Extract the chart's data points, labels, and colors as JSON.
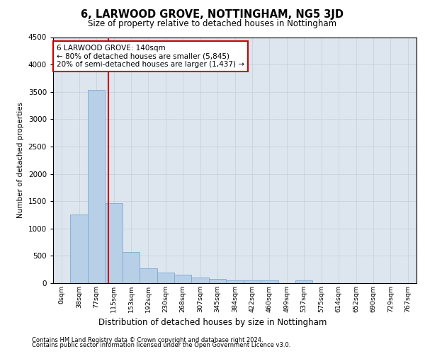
{
  "title": "6, LARWOOD GROVE, NOTTINGHAM, NG5 3JD",
  "subtitle": "Size of property relative to detached houses in Nottingham",
  "xlabel": "Distribution of detached houses by size in Nottingham",
  "ylabel": "Number of detached properties",
  "footer_line1": "Contains HM Land Registry data © Crown copyright and database right 2024.",
  "footer_line2": "Contains public sector information licensed under the Open Government Licence v3.0.",
  "bar_labels": [
    "0sqm",
    "38sqm",
    "77sqm",
    "115sqm",
    "153sqm",
    "192sqm",
    "230sqm",
    "268sqm",
    "307sqm",
    "345sqm",
    "384sqm",
    "422sqm",
    "460sqm",
    "499sqm",
    "537sqm",
    "575sqm",
    "614sqm",
    "652sqm",
    "690sqm",
    "729sqm",
    "767sqm"
  ],
  "bar_values": [
    0,
    1250,
    3530,
    1460,
    570,
    270,
    200,
    150,
    100,
    75,
    55,
    55,
    55,
    0,
    55,
    0,
    0,
    0,
    0,
    0,
    0
  ],
  "bar_color": "#b8cfe8",
  "bar_edge_color": "#7aaad0",
  "vline_x": 2.68,
  "vline_color": "#cc0000",
  "annotation_title": "6 LARWOOD GROVE: 140sqm",
  "annotation_line1": "← 80% of detached houses are smaller (5,845)",
  "annotation_line2": "20% of semi-detached houses are larger (1,437) →",
  "grid_color": "#c5cdd8",
  "background_color": "#dde5ef",
  "ylim": [
    0,
    4500
  ],
  "yticks": [
    0,
    500,
    1000,
    1500,
    2000,
    2500,
    3000,
    3500,
    4000,
    4500
  ]
}
